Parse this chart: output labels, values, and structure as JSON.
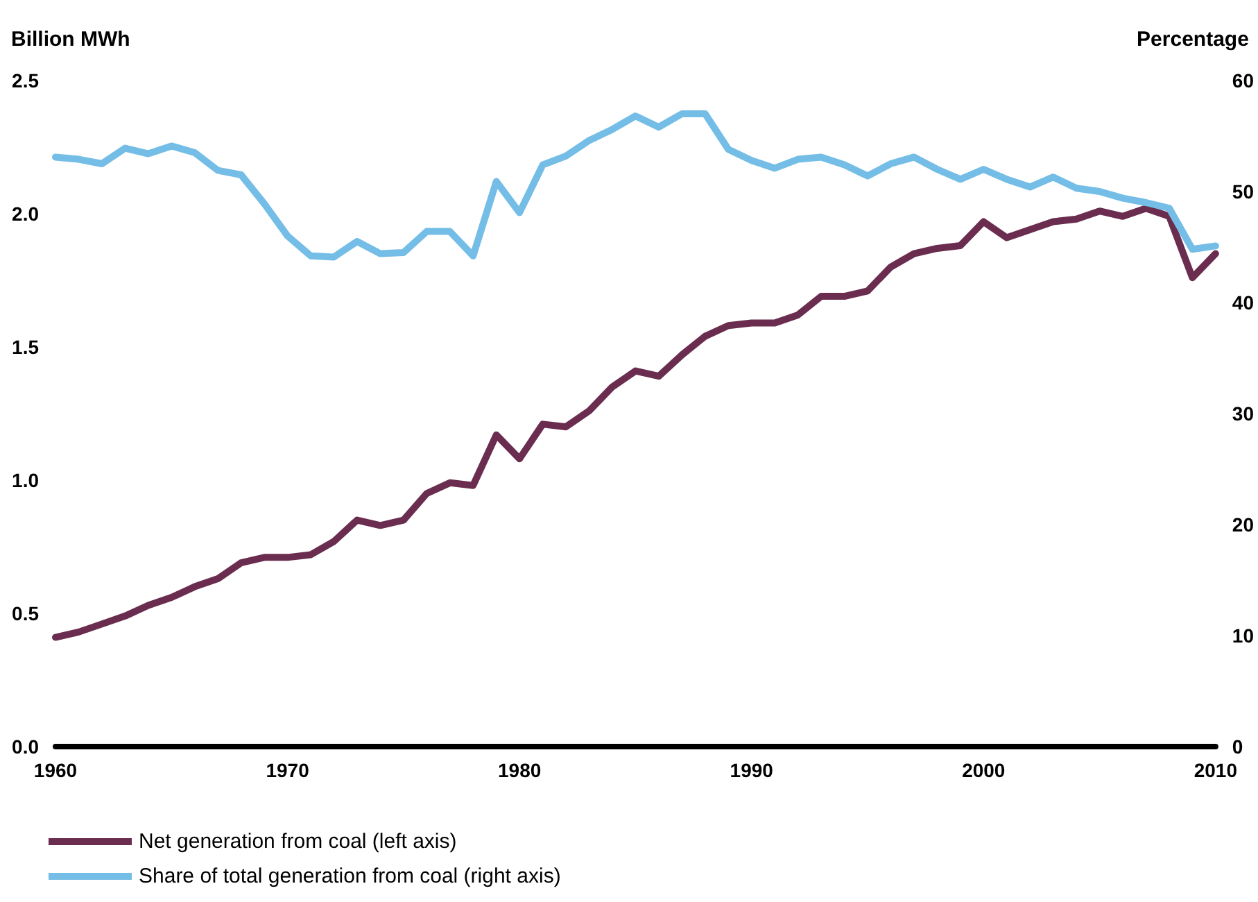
{
  "chart_data": {
    "type": "line",
    "ylabel": "Billion MWh",
    "y2label": "Percentage",
    "x": [
      1960,
      1961,
      1962,
      1963,
      1964,
      1965,
      1966,
      1967,
      1968,
      1969,
      1970,
      1971,
      1972,
      1973,
      1974,
      1975,
      1976,
      1977,
      1978,
      1979,
      1980,
      1981,
      1982,
      1983,
      1984,
      1985,
      1986,
      1987,
      1988,
      1989,
      1990,
      1991,
      1992,
      1993,
      1994,
      1995,
      1996,
      1997,
      1998,
      1999,
      2000,
      2001,
      2002,
      2003,
      2004,
      2005,
      2006,
      2007,
      2008,
      2009,
      2010
    ],
    "series": [
      {
        "name": "Net generation from coal (left axis)",
        "color": "#6b2d4f",
        "values": [
          0.41,
          0.43,
          0.46,
          0.49,
          0.53,
          0.56,
          0.6,
          0.63,
          0.69,
          0.71,
          0.71,
          0.72,
          0.77,
          0.85,
          0.83,
          0.85,
          0.95,
          0.99,
          0.98,
          1.17,
          1.08,
          1.21,
          1.2,
          1.26,
          1.35,
          1.41,
          1.39,
          1.47,
          1.54,
          1.58,
          1.59,
          1.59,
          1.62,
          1.69,
          1.69,
          1.71,
          1.8,
          1.85,
          1.87,
          1.88,
          1.97,
          1.91,
          1.94,
          1.97,
          1.98,
          2.01,
          1.99,
          2.02,
          1.99,
          1.76,
          1.85
        ]
      },
      {
        "name": "Share of total generation from coal (right axis)",
        "color": "#74bde6",
        "axis": "y2",
        "values": [
          53.1,
          52.9,
          52.5,
          53.9,
          53.4,
          54.1,
          53.5,
          51.9,
          51.5,
          48.9,
          46.0,
          44.2,
          44.1,
          45.5,
          44.4,
          44.5,
          46.4,
          46.4,
          44.2,
          50.9,
          48.1,
          52.4,
          53.2,
          54.6,
          55.6,
          56.8,
          55.8,
          57.0,
          57.0,
          53.8,
          52.8,
          52.1,
          52.9,
          53.1,
          52.4,
          51.4,
          52.5,
          53.1,
          52.0,
          51.1,
          52.0,
          51.1,
          50.4,
          51.3,
          50.3,
          50.0,
          49.4,
          49.0,
          48.5,
          44.8,
          45.1
        ]
      }
    ],
    "xlim": [
      1960,
      2010
    ],
    "xticks": [
      1960,
      1970,
      1980,
      1990,
      2000,
      2010
    ],
    "ylim": [
      0,
      2.5
    ],
    "yticks": [
      {
        "value": 0,
        "label": "0.0"
      },
      {
        "value": 0.5,
        "label": "0.5"
      },
      {
        "value": 1,
        "label": "1.0"
      },
      {
        "value": 1.5,
        "label": "1.5"
      },
      {
        "value": 2,
        "label": "2.0"
      },
      {
        "value": 2.5,
        "label": "2.5"
      }
    ],
    "y2lim": [
      0,
      60
    ],
    "y2ticks": [
      0,
      10,
      20,
      30,
      40,
      50,
      60
    ],
    "grid": false,
    "legend": "bottom left",
    "marker": "none",
    "line_style": "solid"
  }
}
